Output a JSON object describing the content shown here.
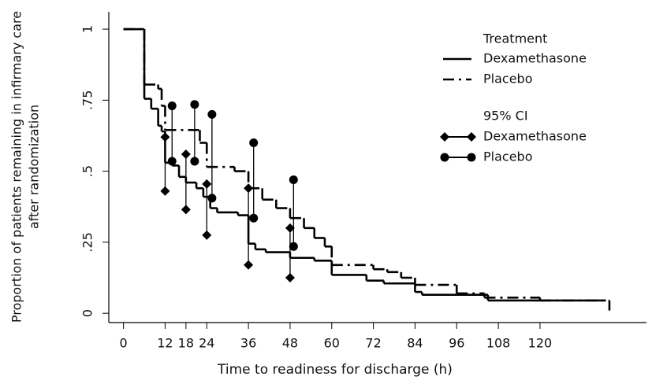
{
  "chart_data": {
    "type": "step",
    "xlabel": "Time to readiness for discharge (h)",
    "ylabel": [
      "Proportion of patients remaining in infirmary care",
      "after randomization"
    ],
    "legend_title": "Treatment",
    "ci_legend_title": "95% CI",
    "xlim": [
      -4,
      150
    ],
    "ylim": [
      -0.03,
      1.05
    ],
    "xticks": [
      0,
      12,
      18,
      24,
      36,
      48,
      60,
      72,
      84,
      96,
      108,
      120
    ],
    "yticks": [
      0,
      {
        "value": 0.25,
        "label": ".25"
      },
      {
        "value": 0.5,
        "label": ".5"
      },
      {
        "value": 0.75,
        "label": ".75"
      },
      1
    ],
    "series": [
      {
        "name": "Dexamethasone",
        "color": "#000000",
        "dash": "none",
        "x": [
          0,
          6,
          8,
          10,
          11,
          12,
          14,
          16,
          18,
          21,
          23,
          25,
          27,
          33,
          36,
          38,
          41,
          48,
          55,
          60,
          70,
          75,
          84,
          86,
          105,
          139
        ],
        "values": [
          1,
          0.755,
          0.72,
          0.66,
          0.64,
          0.53,
          0.52,
          0.48,
          0.46,
          0.44,
          0.41,
          0.37,
          0.355,
          0.345,
          0.245,
          0.225,
          0.215,
          0.195,
          0.185,
          0.135,
          0.115,
          0.105,
          0.075,
          0.065,
          0.045,
          0.045
        ]
      },
      {
        "name": "Placebo",
        "color": "#000000",
        "dash": "14 6 3 6",
        "x": [
          0,
          6,
          10,
          11,
          12,
          22,
          24,
          32,
          36,
          40,
          44,
          48,
          52,
          55,
          58,
          60,
          72,
          76,
          80,
          84,
          96,
          104,
          120,
          140
        ],
        "values": [
          1,
          0.805,
          0.79,
          0.73,
          0.645,
          0.6,
          0.515,
          0.5,
          0.44,
          0.4,
          0.37,
          0.335,
          0.3,
          0.265,
          0.235,
          0.17,
          0.155,
          0.145,
          0.125,
          0.1,
          0.07,
          0.055,
          0.045,
          0.01
        ]
      }
    ],
    "ci_series": [
      {
        "name": "Dexamethasone",
        "color": "#000000",
        "marker": "diamond",
        "x": [
          12,
          18,
          24,
          36,
          48
        ],
        "upper": [
          0.62,
          0.56,
          0.455,
          0.44,
          0.3
        ],
        "lower": [
          0.43,
          0.365,
          0.275,
          0.17,
          0.125
        ]
      },
      {
        "name": "Placebo",
        "color": "#000000",
        "marker": "circle",
        "x": [
          14,
          20.5,
          25.5,
          37.5,
          49
        ],
        "upper": [
          0.73,
          0.735,
          0.7,
          0.6,
          0.47
        ],
        "lower": [
          0.535,
          0.535,
          0.405,
          0.335,
          0.235
        ]
      }
    ]
  }
}
